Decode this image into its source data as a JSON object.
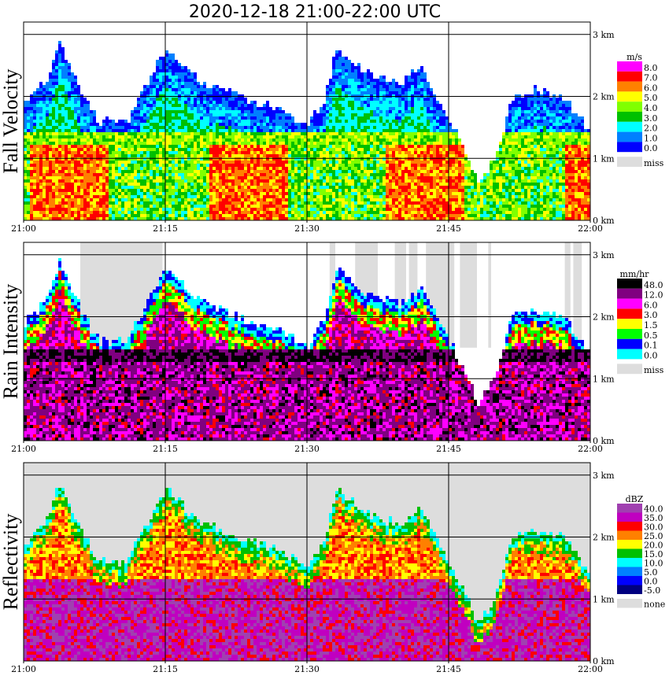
{
  "title": "2020-12-18   21:00-22:00 UTC",
  "chart_data": [
    {
      "type": "heatmap",
      "ylabel": "Fall Velocity",
      "unit": "m/s",
      "x_ticks": [
        "21:00",
        "21:15",
        "21:30",
        "21:45",
        "22:00"
      ],
      "y_ticks": [
        "0 km",
        "1 km",
        "2 km",
        "3 km"
      ],
      "ylim": [
        0,
        3.2
      ],
      "legend": [
        {
          "label": "8.0",
          "color": "#ff00ff"
        },
        {
          "label": "7.0",
          "color": "#ff0000"
        },
        {
          "label": "6.0",
          "color": "#ff8000"
        },
        {
          "label": "5.0",
          "color": "#ffff00"
        },
        {
          "label": "4.0",
          "color": "#80ff00"
        },
        {
          "label": "3.0",
          "color": "#00c000"
        },
        {
          "label": "2.0",
          "color": "#00ffff"
        },
        {
          "label": "1.0",
          "color": "#0080ff"
        },
        {
          "label": "0.0",
          "color": "#0000ff"
        },
        {
          "label": "miss",
          "color": "#dddddd"
        }
      ]
    },
    {
      "type": "heatmap",
      "ylabel": "Rain Intensity",
      "unit": "mm/hr",
      "x_ticks": [
        "21:00",
        "21:15",
        "21:30",
        "21:45",
        "22:00"
      ],
      "y_ticks": [
        "0 km",
        "1 km",
        "2 km",
        "3 km"
      ],
      "ylim": [
        0,
        3.2
      ],
      "legend": [
        {
          "label": "48.0",
          "color": "#000000"
        },
        {
          "label": "12.0",
          "color": "#800080"
        },
        {
          "label": "6.0",
          "color": "#ff00ff"
        },
        {
          "label": "3.0",
          "color": "#ff0000"
        },
        {
          "label": "1.5",
          "color": "#ffff00"
        },
        {
          "label": "0.5",
          "color": "#00ff00"
        },
        {
          "label": "0.1",
          "color": "#0000ff"
        },
        {
          "label": "0.0",
          "color": "#00ffff"
        },
        {
          "label": "miss",
          "color": "#dddddd"
        }
      ]
    },
    {
      "type": "heatmap",
      "ylabel": "Reflectivity",
      "unit": "dBZ",
      "x_ticks": [
        "21:00",
        "21:15",
        "21:30",
        "21:45",
        "22:00"
      ],
      "y_ticks": [
        "0 km",
        "1 km",
        "2 km",
        "3 km"
      ],
      "ylim": [
        0,
        3.2
      ],
      "legend": [
        {
          "label": "40.0",
          "color": "#a040b0"
        },
        {
          "label": "35.0",
          "color": "#c000c0"
        },
        {
          "label": "30.0",
          "color": "#ff0000"
        },
        {
          "label": "25.0",
          "color": "#ff8000"
        },
        {
          "label": "20.0",
          "color": "#ffff00"
        },
        {
          "label": "15.0",
          "color": "#00c000"
        },
        {
          "label": "10.0",
          "color": "#00ffff"
        },
        {
          "label": "5.0",
          "color": "#0080ff"
        },
        {
          "label": "0.0",
          "color": "#0000ff"
        },
        {
          "label": "-5.0",
          "color": "#000080"
        },
        {
          "label": "none",
          "color": "#dddddd"
        }
      ]
    }
  ]
}
